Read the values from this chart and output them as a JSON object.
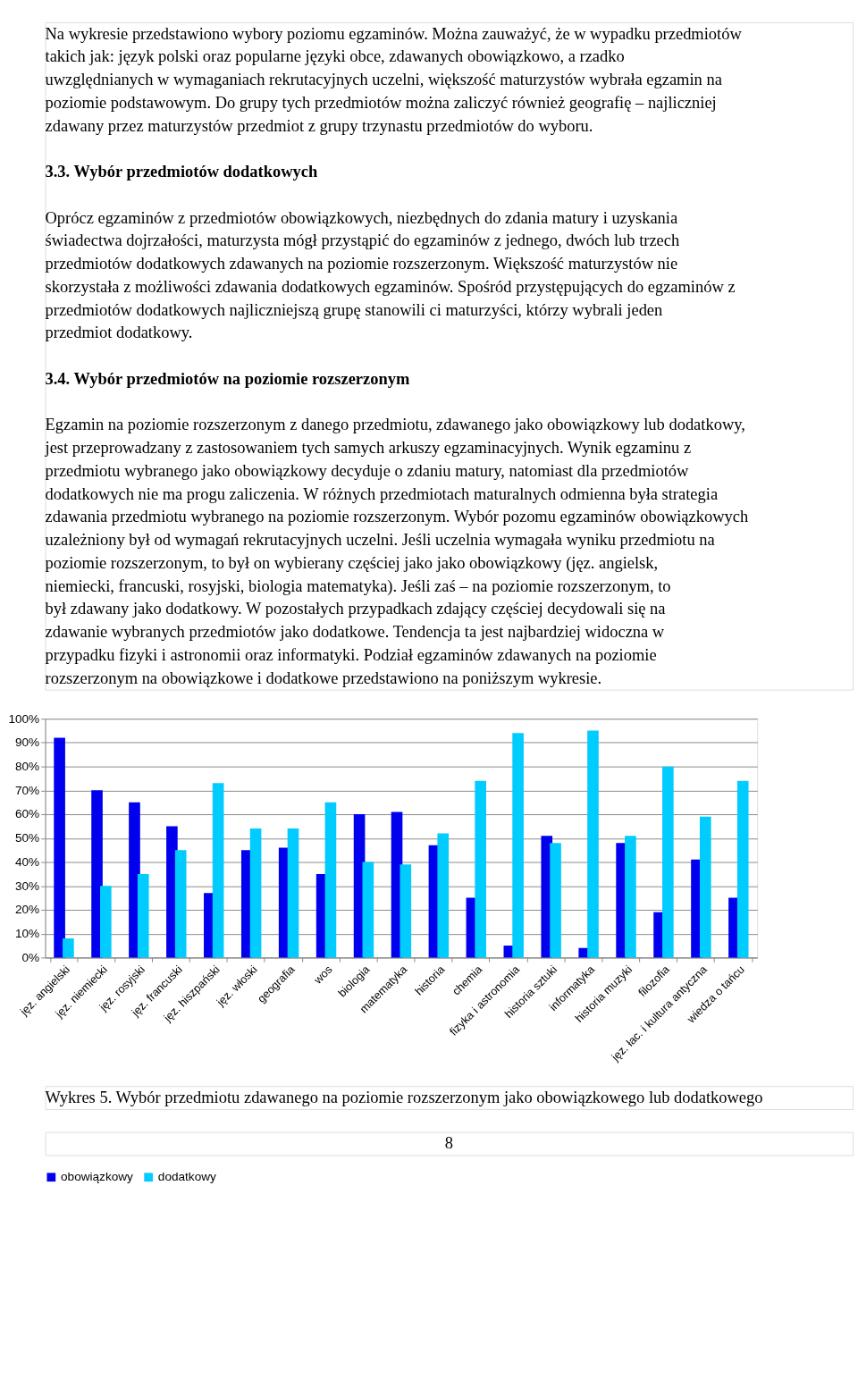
{
  "chart_data": {
    "type": "bar",
    "title": "Wykres 5. Wybór przedmiotu zdawanego na poziomie rozszerzonym jako obowiązkowego lub dodatkowego",
    "annotations": [
      "Na wykresie przedstawiono wybory poziomu egzaminów. Można zauważyć, że w wypadku przedmiotów takich jak: język polski oraz popularne języki obce, zdawanych obowiązkowo, a rzadko uwzględnianych w wymaganiach rekrutacyjnych uczelni, większość maturzystów wybrała egzamin na poziomie podstawowym. Do grupy tych przedmiotów można zaliczyć również geografię – najliczniej zdawany przez maturzystów przedmiot z grupy trzynastu przedmiotów do wyboru.",
      "3.3. Wybór przedmiotów dodatkowych",
      "Oprócz egzaminów z przedmiotów obowiązkowych, niezbędnych do zdania matury i uzyskania świadectwa dojrzałości, maturzysta mógł przystąpić do egzaminów z jednego, dwóch lub trzech przedmiotów dodatkowych zdawanych na poziomie rozszerzonym. Większość maturzystów nie skorzystała z możliwości zdawania dodatkowych egzaminów. Spośród przystępujących do egzaminów z przedmiotów dodatkowych najliczniejszą grupę stanowili ci maturzyści, którzy wybrali jeden przedmiot dodatkowy.",
      "3.4. Wybór przedmiotów na poziomie rozszerzonym",
      "Egzamin na poziomie rozszerzonym z danego przedmiotu, zdawanego jako obowiązkowy lub dodatkowy, jest przeprowadzany z zastosowaniem tych samych arkuszy egzaminacyjnych. Wynik egzaminu z przedmiotu wybranego jako obowiązkowy decyduje o zdaniu matury, natomiast dla przedmiotów dodatkowych nie ma progu zaliczenia. W różnych przedmiotach maturalnych odmienna była strategia zdawania przedmiotu wybranego na poziomie rozszerzonym. Wybór pozomu egzaminów obowiązkowych uzależniony był od wymagań rekrutacyjnych uczelni. Jeśli uczelnia wymagała wyniku przedmiotu na poziomie rozszerzonym, to był on wybierany częściej jako jako obowiązkowy (jęz. angielsk, niemiecki, francuski, rosyjski, biologia matematyka). Jeśli zaś – na poziomie rozszerzonym, to był zdawany jako dodatkowy. W pozostałych przypadkach zdający częściej decydowali się na zdawanie wybranych przedmiotów jako dodatkowe. Tendencja ta jest najbardziej widoczna w przypadku fizyki i astronomii oraz informatyki. Podział egzaminów zdawanych na poziomie rozszerzonym na obowiązkowe i dodatkowe przedstawiono na poniższym wykresie.",
      "8"
    ],
    "categories": [
      "jęz. angielski",
      "jęz. niemiecki",
      "jęz. rosyjski",
      "jęz. francuski",
      "jęz. hiszpański",
      "jęz. włoski",
      "geografia",
      "wos",
      "biologia",
      "matematyka",
      "historia",
      "chemia",
      "fizyka i astronomia",
      "historia sztuki",
      "informatyka",
      "historia muzyki",
      "filozofia",
      "jęz. łac. i kultura antyczna",
      "wiedza o tańcu"
    ],
    "series": [
      {
        "name": "obowiązkowy",
        "color": "#0000ee",
        "values": [
          92,
          70,
          65,
          55,
          27,
          45,
          46,
          35,
          60,
          61,
          47,
          25,
          5,
          51,
          4,
          48,
          19,
          41,
          25
        ]
      },
      {
        "name": "dodatkowy",
        "color": "#00ccff",
        "values": [
          8,
          30,
          35,
          45,
          73,
          54,
          54,
          65,
          40,
          39,
          52,
          74,
          94,
          48,
          95,
          51,
          80,
          59,
          74
        ]
      }
    ],
    "ylim": [
      0,
      100
    ],
    "yticks": [
      {
        "value": 0,
        "label": "0%"
      },
      {
        "value": 10,
        "label": "10%"
      },
      {
        "value": 20,
        "label": "20%"
      },
      {
        "value": 30,
        "label": "30%"
      },
      {
        "value": 40,
        "label": "40%"
      },
      {
        "value": 50,
        "label": "50%"
      },
      {
        "value": 60,
        "label": "60%"
      },
      {
        "value": 70,
        "label": "70%"
      },
      {
        "value": 80,
        "label": "80%"
      },
      {
        "value": 90,
        "label": "90%"
      },
      {
        "value": 100,
        "label": "100%"
      }
    ],
    "grid": "y",
    "legend": "bottom"
  }
}
